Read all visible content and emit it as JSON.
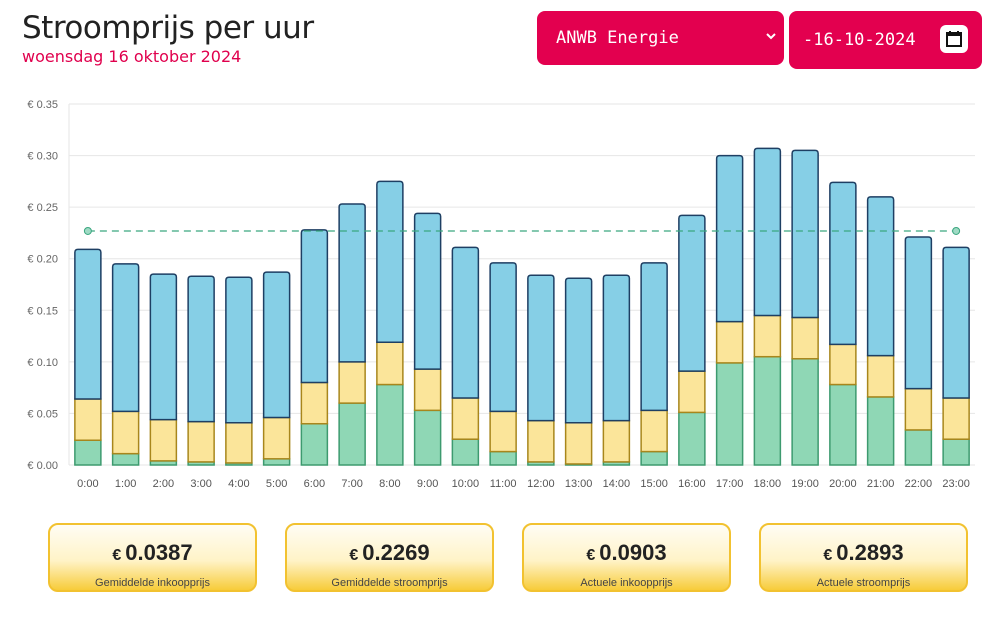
{
  "header": {
    "title": "Stroomprijs per uur",
    "subtitle": "woensdag 16 oktober 2024",
    "supplier": "ANWB Energie",
    "date": "-16-10-2024"
  },
  "colors": {
    "accent": "#e3004f",
    "segment_green": "#8fd7b5",
    "segment_yellow": "#fbe59a",
    "segment_blue": "#86cfe6",
    "avg_line": "#3aa67f",
    "card_border": "#f2c230"
  },
  "chart_data": {
    "type": "bar",
    "stacked": true,
    "categories": [
      "0:00",
      "1:00",
      "2:00",
      "3:00",
      "4:00",
      "5:00",
      "6:00",
      "7:00",
      "8:00",
      "9:00",
      "10:00",
      "11:00",
      "12:00",
      "13:00",
      "14:00",
      "15:00",
      "16:00",
      "17:00",
      "18:00",
      "19:00",
      "20:00",
      "21:00",
      "22:00",
      "23:00"
    ],
    "series": [
      {
        "color": "#8fd7b5",
        "values": [
          0.024,
          0.011,
          0.004,
          0.003,
          0.002,
          0.006,
          0.04,
          0.06,
          0.078,
          0.053,
          0.025,
          0.013,
          0.003,
          0.001,
          0.003,
          0.013,
          0.051,
          0.099,
          0.105,
          0.103,
          0.078,
          0.066,
          0.034,
          0.025
        ]
      },
      {
        "color": "#fbe59a",
        "values": [
          0.04,
          0.041,
          0.04,
          0.039,
          0.039,
          0.04,
          0.04,
          0.04,
          0.041,
          0.04,
          0.04,
          0.039,
          0.04,
          0.04,
          0.04,
          0.04,
          0.04,
          0.04,
          0.04,
          0.04,
          0.039,
          0.04,
          0.04,
          0.04
        ]
      },
      {
        "color": "#86cfe6",
        "values": [
          0.145,
          0.143,
          0.141,
          0.141,
          0.141,
          0.141,
          0.148,
          0.153,
          0.156,
          0.151,
          0.146,
          0.144,
          0.141,
          0.14,
          0.141,
          0.143,
          0.151,
          0.161,
          0.162,
          0.162,
          0.157,
          0.154,
          0.147,
          0.146
        ]
      }
    ],
    "average_line": 0.2269,
    "ylim": [
      0,
      0.35
    ],
    "y_ticks": [
      "€ 0.00",
      "€ 0.05",
      "€ 0.10",
      "€ 0.15",
      "€ 0.20",
      "€ 0.25",
      "€ 0.30",
      "€ 0.35"
    ],
    "y_tick_values": [
      0,
      0.05,
      0.1,
      0.15,
      0.2,
      0.25,
      0.3,
      0.35
    ],
    "grid": true,
    "legend": "none"
  },
  "stats": [
    {
      "currency": "€",
      "value": "0.0387",
      "label": "Gemiddelde inkoopprijs"
    },
    {
      "currency": "€",
      "value": "0.2269",
      "label": "Gemiddelde stroomprijs"
    },
    {
      "currency": "€",
      "value": "0.0903",
      "label": "Actuele inkoopprijs"
    },
    {
      "currency": "€",
      "value": "0.2893",
      "label": "Actuele stroomprijs"
    }
  ]
}
